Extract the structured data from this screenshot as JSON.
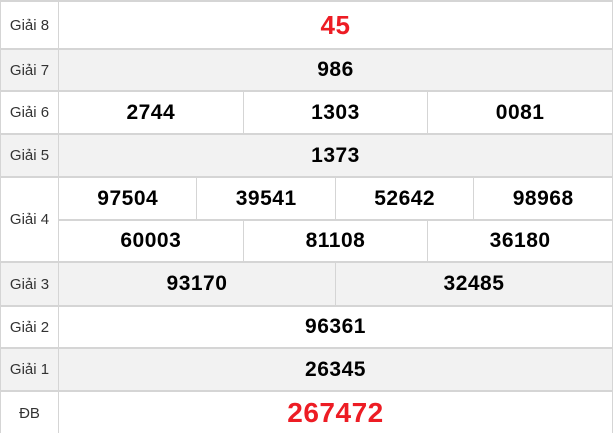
{
  "table": {
    "description": "Vietnamese lottery prize results table",
    "rows": [
      {
        "label": "Giải 8",
        "numbers": [
          "45"
        ],
        "highlight": true
      },
      {
        "label": "Giải 7",
        "numbers": [
          "986"
        ],
        "highlight": false
      },
      {
        "label": "Giải 6",
        "numbers": [
          "2744",
          "1303",
          "0081"
        ],
        "highlight": false
      },
      {
        "label": "Giải 5",
        "numbers": [
          "1373"
        ],
        "highlight": false
      },
      {
        "label": "Giải 4",
        "numbers": [
          "97504",
          "39541",
          "52642",
          "98968",
          "60003",
          "81108",
          "36180"
        ],
        "highlight": false
      },
      {
        "label": "Giải 3",
        "numbers": [
          "93170",
          "32485"
        ],
        "highlight": false
      },
      {
        "label": "Giải 2",
        "numbers": [
          "96361"
        ],
        "highlight": false
      },
      {
        "label": "Giải 1",
        "numbers": [
          "26345"
        ],
        "highlight": false
      },
      {
        "label": "ĐB",
        "numbers": [
          "267472"
        ],
        "highlight": true
      }
    ]
  },
  "theme": {
    "highlight": "#ed1c24",
    "num": "#000000",
    "label": "#333333",
    "altbg": "#f2f2f2",
    "border": "#d5d5d5",
    "bg": "#ffffff"
  }
}
